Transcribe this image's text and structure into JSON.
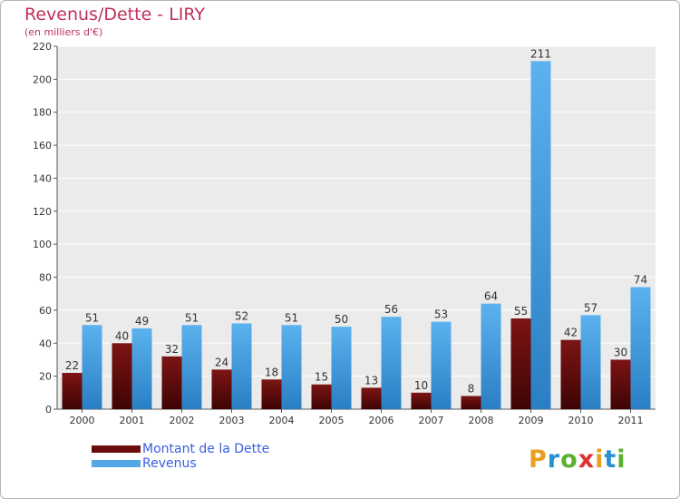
{
  "title": "Revenus/Dette - LIRY",
  "subtitle": "(en milliers d'€)",
  "logo": {
    "text": "Proxiti",
    "colors": [
      "#e8a020",
      "#2a8fd0",
      "#5ab030",
      "#e03030",
      "#e8a020",
      "#2a8fd0",
      "#5ab030"
    ]
  },
  "colors": {
    "dette": "#6b0d0d",
    "revenus": "#55a8e6",
    "grid": "#ffffff",
    "plot_bg": "#ebebeb",
    "text": "#333333"
  },
  "chart_data": {
    "type": "bar",
    "categories": [
      "2000",
      "2001",
      "2002",
      "2003",
      "2004",
      "2005",
      "2006",
      "2007",
      "2008",
      "2009",
      "2010",
      "2011"
    ],
    "series": [
      {
        "name": "Montant de la Dette",
        "values": [
          22,
          40,
          32,
          24,
          18,
          15,
          13,
          10,
          8,
          55,
          42,
          30
        ]
      },
      {
        "name": "Revenus",
        "values": [
          51,
          49,
          51,
          52,
          51,
          50,
          56,
          53,
          64,
          211,
          57,
          74
        ]
      }
    ],
    "yticks": [
      "0",
      "20",
      "40",
      "60",
      "80",
      "100",
      "120",
      "140",
      "160",
      "180",
      "200",
      "220"
    ],
    "ylim": [
      0,
      220
    ],
    "grid": true,
    "legend": "bottom-left"
  }
}
